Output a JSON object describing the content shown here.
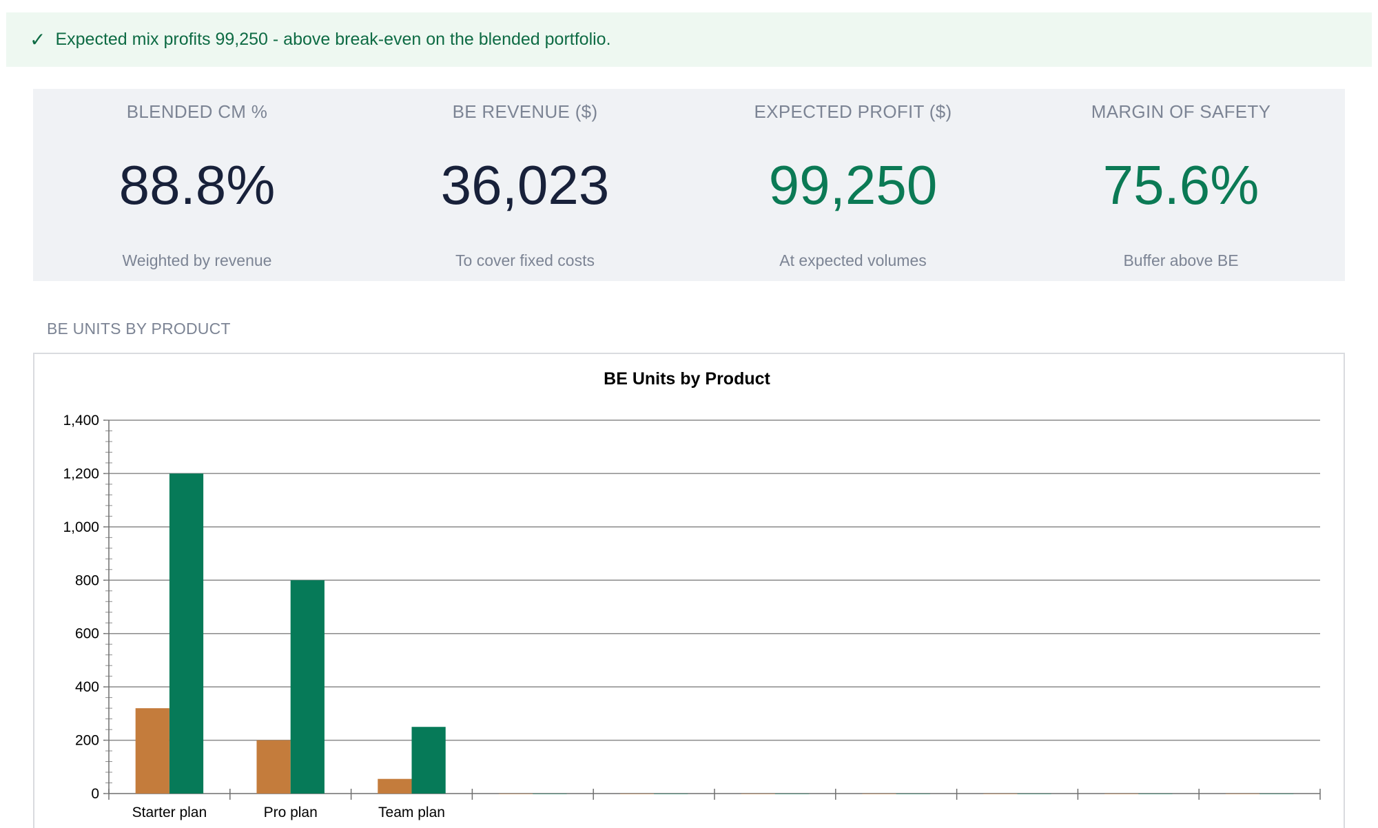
{
  "banner": {
    "icon": "check-icon",
    "text": "Expected mix profits 99,250 - above break-even on the blended portfolio."
  },
  "kpis": [
    {
      "label": "BLENDED CM %",
      "value": "88.8%",
      "sub": "Weighted by revenue",
      "color": "#18213a"
    },
    {
      "label": "BE REVENUE ($)",
      "value": "36,023",
      "sub": "To cover fixed costs",
      "color": "#18213a"
    },
    {
      "label": "EXPECTED PROFIT ($)",
      "value": "99,250",
      "sub": "At expected volumes",
      "color": "#0b7a55"
    },
    {
      "label": "MARGIN OF SAFETY",
      "value": "75.6%",
      "sub": "Buffer above BE",
      "color": "#0b7a55"
    }
  ],
  "section": {
    "title": "BE UNITS BY PRODUCT"
  },
  "chart_data": {
    "type": "bar",
    "title": "BE Units by Product",
    "categories": [
      "Starter plan",
      "Pro plan",
      "Team plan",
      "",
      "",
      "",
      "",
      "",
      "",
      ""
    ],
    "series": [
      {
        "color": "#c47c3c",
        "values": [
          320,
          200,
          55,
          0,
          0,
          0,
          0,
          0,
          0,
          0
        ]
      },
      {
        "color": "#067a58",
        "values": [
          1200,
          800,
          250,
          0,
          0,
          0,
          0,
          0,
          0,
          0
        ]
      }
    ],
    "ylim": [
      0,
      1400
    ],
    "yticks": [
      0,
      200,
      400,
      600,
      800,
      1000,
      1200,
      1400
    ],
    "ytick_labels": [
      "0",
      "200",
      "400",
      "600",
      "800",
      "1,000",
      "1,200",
      "1,400"
    ],
    "grid": true,
    "legend": "none"
  }
}
